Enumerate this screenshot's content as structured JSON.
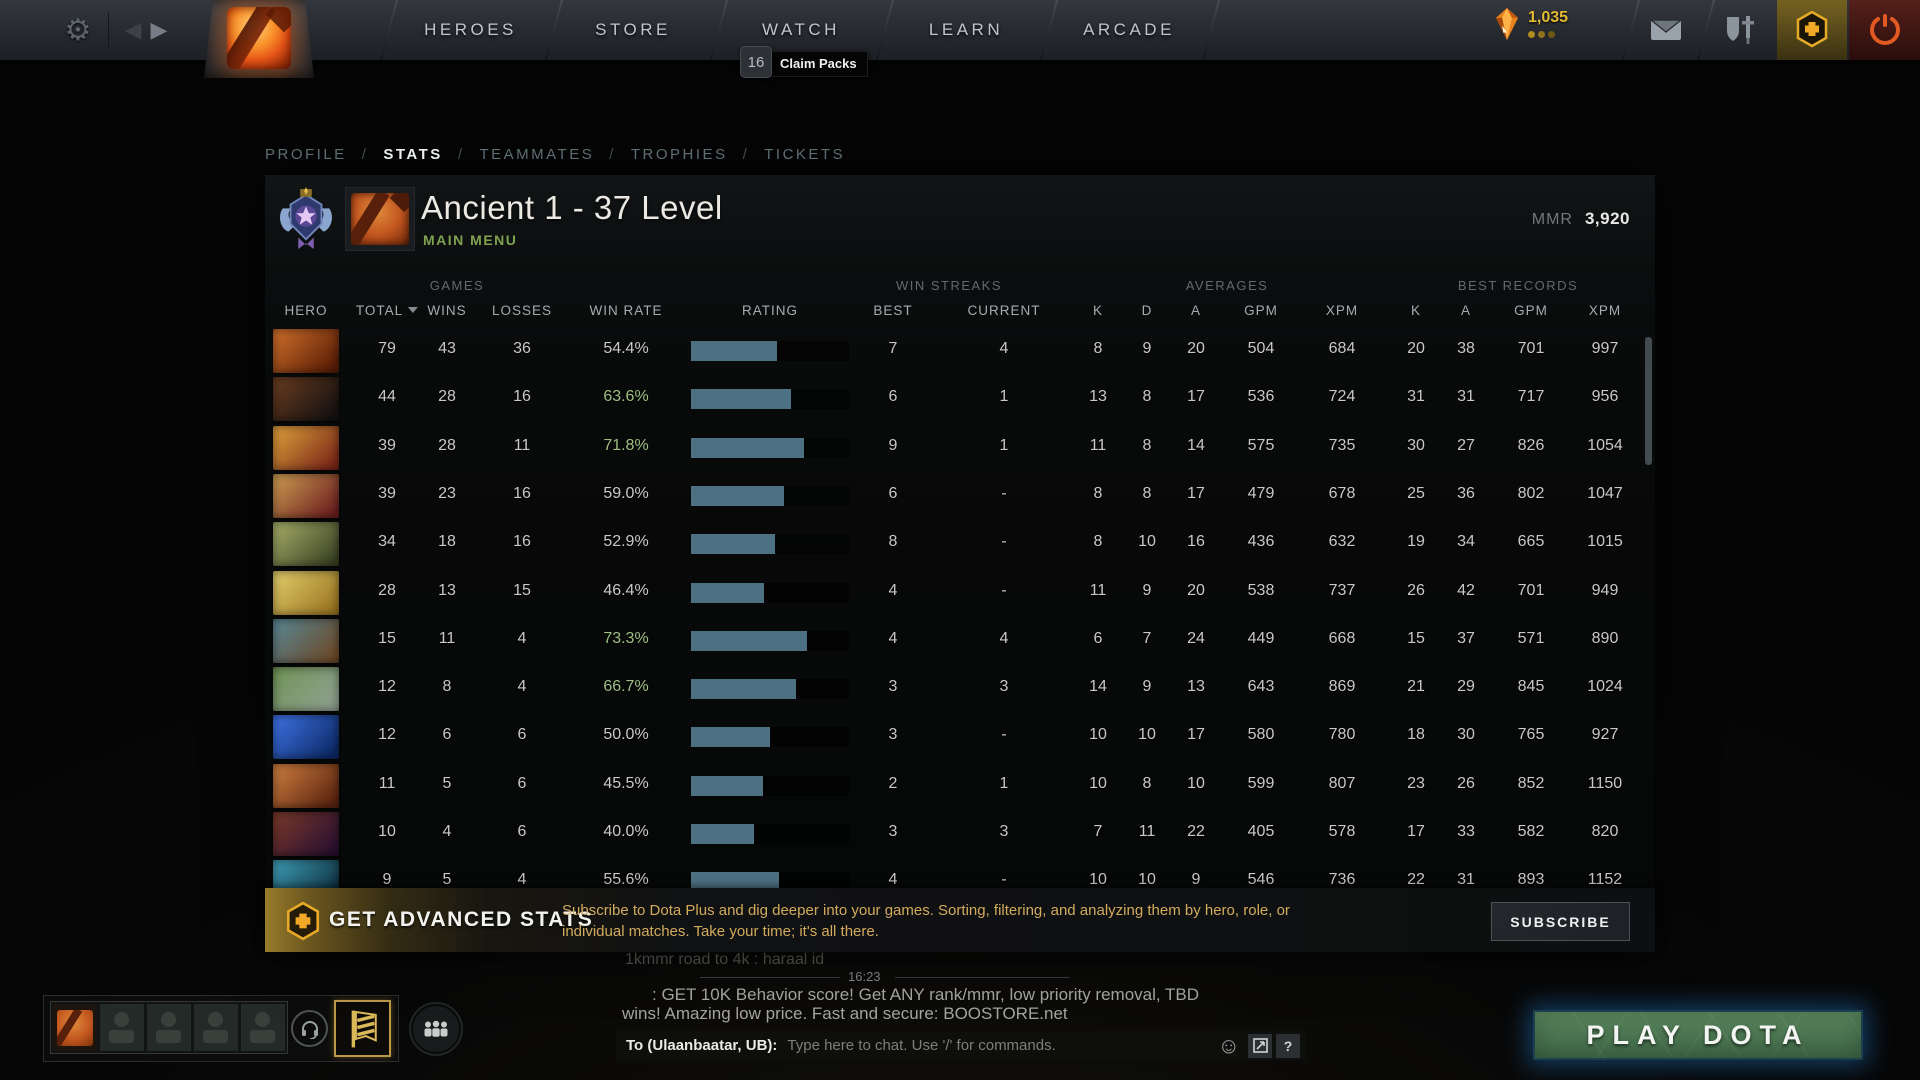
{
  "topbar": {
    "nav": [
      "HEROES",
      "STORE",
      "WATCH",
      "LEARN",
      "ARCADE"
    ],
    "shards": "1,035",
    "claim_badge": "16",
    "claim_label": "Claim Packs",
    "icons": {
      "gear": "⚙",
      "back": "◀",
      "forward": "▶"
    }
  },
  "breadcrumb": {
    "items": [
      "PROFILE",
      "STATS",
      "TEAMMATES",
      "TROPHIES",
      "TICKETS"
    ],
    "active": "STATS",
    "separator": "/"
  },
  "header": {
    "title": "Ancient 1 - 37 Level",
    "subtitle": "MAIN MENU",
    "mmr_label": "MMR",
    "mmr_value": "3,920"
  },
  "table": {
    "groups": [
      "GAMES",
      "WIN STREAKS",
      "AVERAGES",
      "BEST RECORDS"
    ],
    "cols": {
      "hero": "HERO",
      "total": "TOTAL",
      "wins": "WINS",
      "losses": "LOSSES",
      "rate": "WIN RATE",
      "rating": "RATING",
      "best": "BEST",
      "current": "CURRENT",
      "k": "K",
      "d": "D",
      "a": "A",
      "gpm": "GPM",
      "xpm": "XPM",
      "bk": "K",
      "ba": "A",
      "bgpm": "GPM",
      "bxpm": "XPM"
    },
    "bar_color": "#4d7183",
    "win_rate_green": "#9ec084",
    "rows": [
      {
        "portrait": [
          "#d2702a",
          "#5a1e06"
        ],
        "total": 79,
        "wins": 43,
        "losses": 36,
        "rate": 54.4,
        "rate_label": "54.4%",
        "best": 7,
        "current": "4",
        "k": 8,
        "d": 9,
        "a": 20,
        "gpm": 504,
        "xpm": 684,
        "bk": 20,
        "ba": 38,
        "bgpm": 701,
        "bxpm": 997
      },
      {
        "portrait": [
          "#6b3c20",
          "#151210"
        ],
        "total": 44,
        "wins": 28,
        "losses": 16,
        "rate": 63.6,
        "rate_label": "63.6%",
        "best": 6,
        "current": "1",
        "k": 13,
        "d": 8,
        "a": 17,
        "gpm": 536,
        "xpm": 724,
        "bk": 31,
        "ba": 31,
        "bgpm": 717,
        "bxpm": 956
      },
      {
        "portrait": [
          "#e0a43c",
          "#7c2818"
        ],
        "total": 39,
        "wins": 28,
        "losses": 11,
        "rate": 71.8,
        "rate_label": "71.8%",
        "best": 9,
        "current": "1",
        "k": 11,
        "d": 8,
        "a": 14,
        "gpm": 575,
        "xpm": 735,
        "bk": 30,
        "ba": 27,
        "bgpm": 826,
        "bxpm": 1054
      },
      {
        "portrait": [
          "#cfa052",
          "#6e2020"
        ],
        "total": 39,
        "wins": 23,
        "losses": 16,
        "rate": 59.0,
        "rate_label": "59.0%",
        "best": 6,
        "current": "-",
        "k": 8,
        "d": 8,
        "a": 17,
        "gpm": 479,
        "xpm": 678,
        "bk": 25,
        "ba": 36,
        "bgpm": 802,
        "bxpm": 1047
      },
      {
        "portrait": [
          "#a8b06a",
          "#3c4424"
        ],
        "total": 34,
        "wins": 18,
        "losses": 16,
        "rate": 52.9,
        "rate_label": "52.9%",
        "best": 8,
        "current": "-",
        "k": 8,
        "d": 10,
        "a": 16,
        "gpm": 436,
        "xpm": 632,
        "bk": 19,
        "ba": 34,
        "bgpm": 665,
        "bxpm": 1015
      },
      {
        "portrait": [
          "#e6cf6d",
          "#9a7622"
        ],
        "total": 28,
        "wins": 13,
        "losses": 15,
        "rate": 46.4,
        "rate_label": "46.4%",
        "best": 4,
        "current": "-",
        "k": 11,
        "d": 9,
        "a": 20,
        "gpm": 538,
        "xpm": 737,
        "bk": 26,
        "ba": 42,
        "bgpm": 701,
        "bxpm": 949
      },
      {
        "portrait": [
          "#5a8898",
          "#6b4a28"
        ],
        "total": 15,
        "wins": 11,
        "losses": 4,
        "rate": 73.3,
        "rate_label": "73.3%",
        "best": 4,
        "current": "4",
        "k": 6,
        "d": 7,
        "a": 24,
        "gpm": 449,
        "xpm": 668,
        "bk": 15,
        "ba": 37,
        "bgpm": 571,
        "bxpm": 890
      },
      {
        "portrait": [
          "#6f9455",
          "#8fa08f"
        ],
        "total": 12,
        "wins": 8,
        "losses": 4,
        "rate": 66.7,
        "rate_label": "66.7%",
        "best": 3,
        "current": "3",
        "k": 14,
        "d": 9,
        "a": 13,
        "gpm": 643,
        "xpm": 869,
        "bk": 21,
        "ba": 29,
        "bgpm": 845,
        "bxpm": 1024
      },
      {
        "portrait": [
          "#3f74e8",
          "#0c2a66"
        ],
        "total": 12,
        "wins": 6,
        "losses": 6,
        "rate": 50.0,
        "rate_label": "50.0%",
        "best": 3,
        "current": "-",
        "k": 10,
        "d": 10,
        "a": 17,
        "gpm": 580,
        "xpm": 780,
        "bk": 18,
        "ba": 30,
        "bgpm": 765,
        "bxpm": 927
      },
      {
        "portrait": [
          "#d08040",
          "#5c2410"
        ],
        "total": 11,
        "wins": 5,
        "losses": 6,
        "rate": 45.5,
        "rate_label": "45.5%",
        "best": 2,
        "current": "1",
        "k": 10,
        "d": 8,
        "a": 10,
        "gpm": 599,
        "xpm": 807,
        "bk": 23,
        "ba": 26,
        "bgpm": 852,
        "bxpm": 1150
      },
      {
        "portrait": [
          "#7c3a2a",
          "#2a1030"
        ],
        "total": 10,
        "wins": 4,
        "losses": 6,
        "rate": 40.0,
        "rate_label": "40.0%",
        "best": 3,
        "current": "3",
        "k": 7,
        "d": 11,
        "a": 22,
        "gpm": 405,
        "xpm": 578,
        "bk": 17,
        "ba": 33,
        "bgpm": 582,
        "bxpm": 820
      },
      {
        "portrait": [
          "#3fa0b8",
          "#0c2a3a"
        ],
        "total": 9,
        "wins": 5,
        "losses": 4,
        "rate": 55.6,
        "rate_label": "55.6%",
        "best": 4,
        "current": "-",
        "k": 10,
        "d": 10,
        "a": 9,
        "gpm": 546,
        "xpm": 736,
        "bk": 22,
        "ba": 31,
        "bgpm": 893,
        "bxpm": 1152
      }
    ]
  },
  "plus_banner": {
    "heading": "GET ADVANCED STATS",
    "desc_line1": "Subscribe to Dota Plus and dig deeper into your games. Sorting, filtering, and analyzing them by hero, role, or",
    "desc_line2": "individual matches. Take your time; it's all there.",
    "button": "SUBSCRIBE"
  },
  "chat": {
    "history_line": "1kmmr road to 4k  : haraal id",
    "timestamp": "16:23",
    "msg_line1": ": GET 10K Behavior score! Get ANY rank/mmr, low priority removal, TBD",
    "msg_line2": "wins! Amazing low price. Fast and secure: BOOSTORE.net",
    "to_label": "To (Ulaanbaatar, UB):",
    "placeholder": "Type here to chat. Use '/' for commands.",
    "smiley": "☺",
    "help": "?"
  },
  "play": {
    "label": "PLAY DOTA"
  }
}
